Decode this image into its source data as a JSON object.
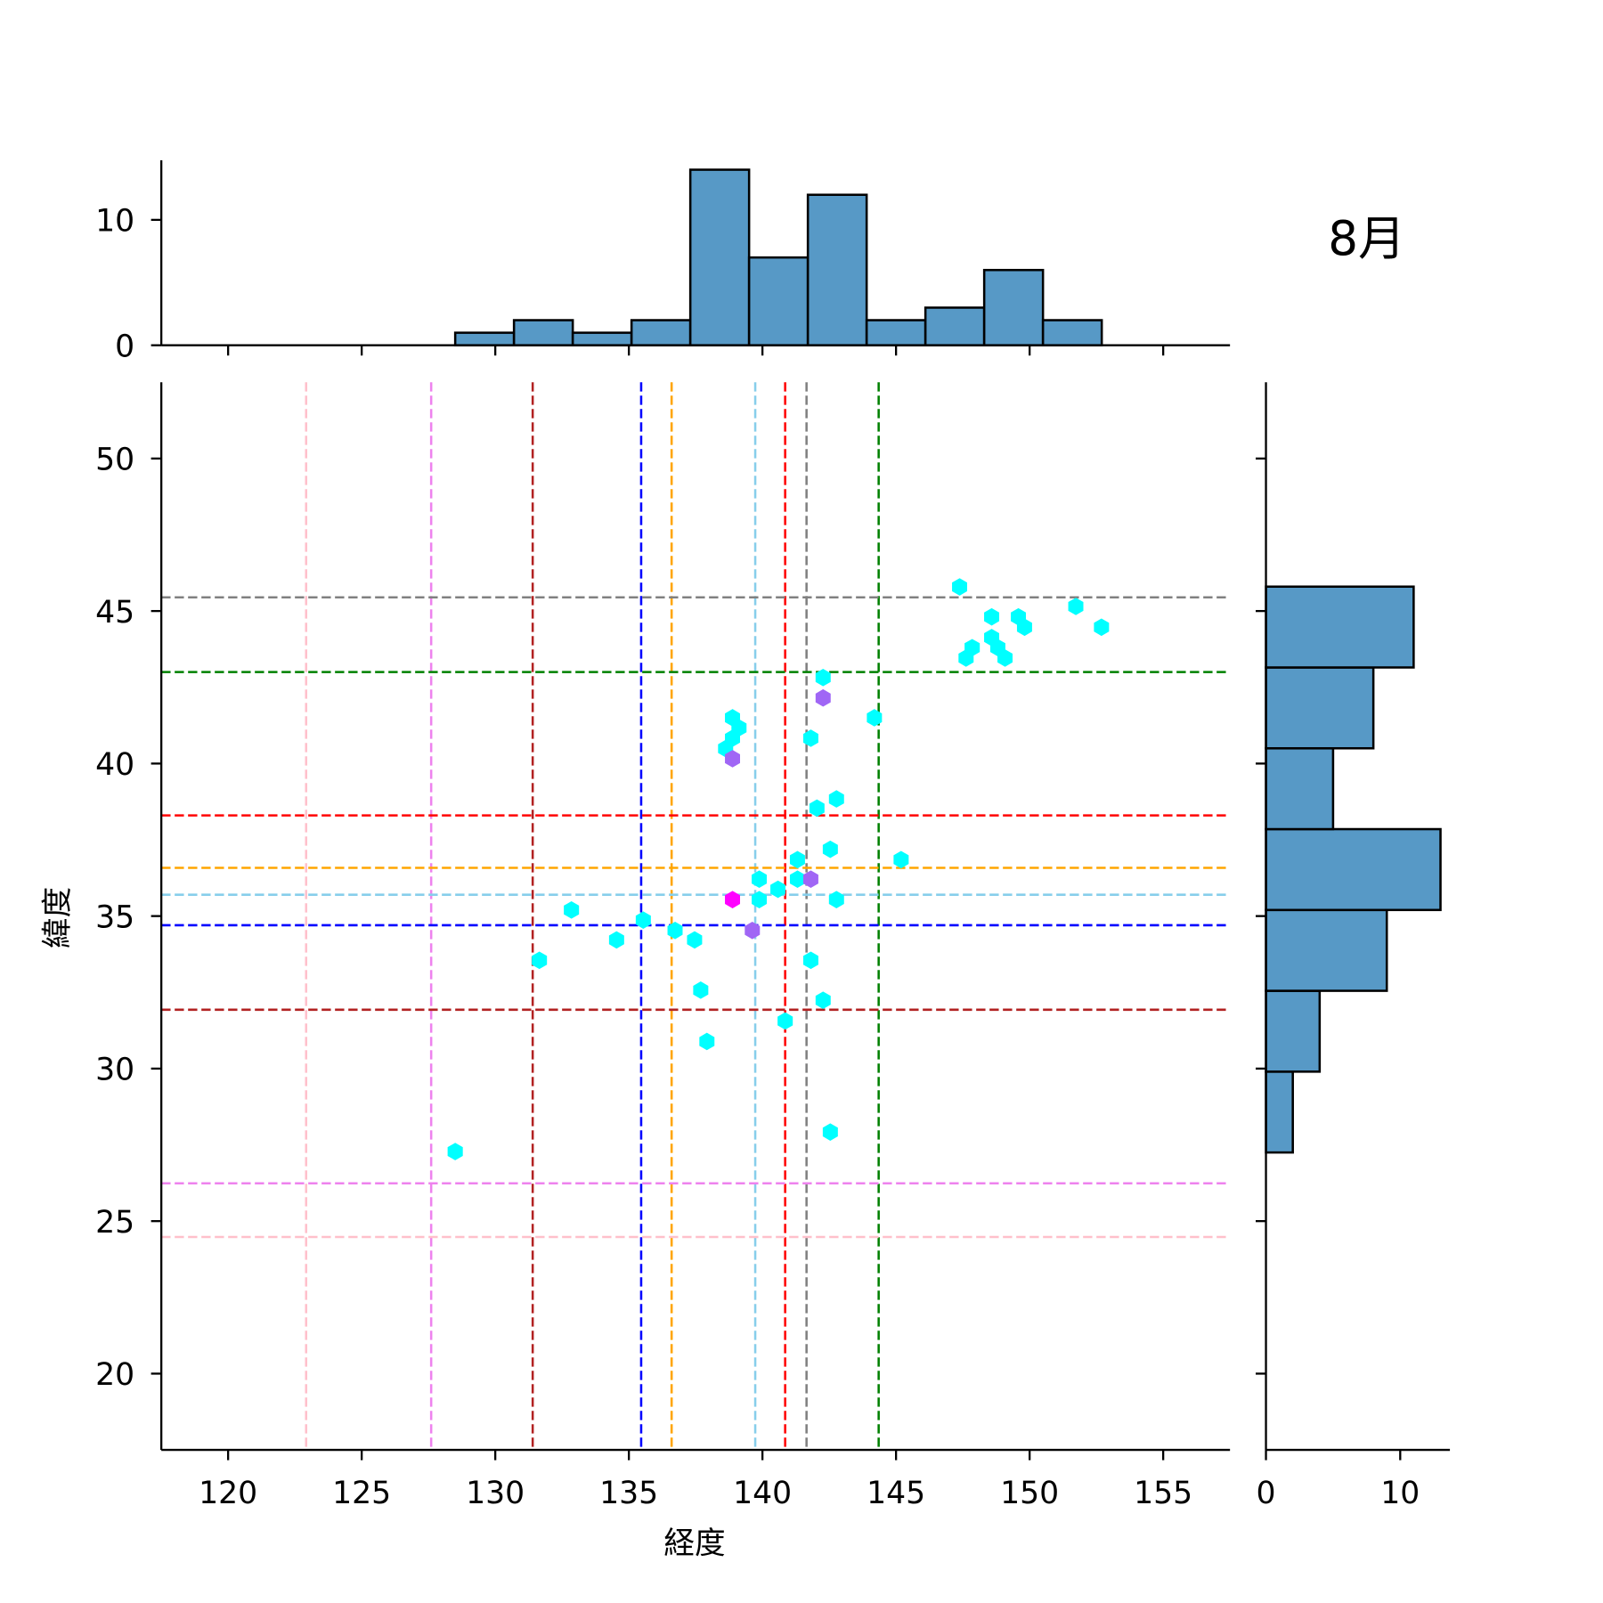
{
  "chart_data": {
    "type": "scatter",
    "title": "8月",
    "xlabel": "経度",
    "ylabel": "緯度",
    "xlim": [
      117.5,
      157.5
    ],
    "ylim": [
      17.5,
      52.5
    ],
    "xticks": [
      120,
      125,
      130,
      135,
      140,
      145,
      150,
      155
    ],
    "yticks": [
      20,
      25,
      30,
      35,
      40,
      45,
      50
    ],
    "grid": false,
    "colors": {
      "hist": "#5799c6",
      "cyan": "#00ffff",
      "purple": "#a066f5",
      "magenta": "#ff00ff"
    },
    "points": [
      {
        "lon": 147.38,
        "lat": 45.79,
        "c": "cyan"
      },
      {
        "lon": 148.58,
        "lat": 44.81,
        "c": "cyan"
      },
      {
        "lon": 149.58,
        "lat": 44.81,
        "c": "cyan"
      },
      {
        "lon": 149.81,
        "lat": 44.47,
        "c": "cyan"
      },
      {
        "lon": 151.73,
        "lat": 45.15,
        "c": "cyan"
      },
      {
        "lon": 152.69,
        "lat": 44.47,
        "c": "cyan"
      },
      {
        "lon": 148.58,
        "lat": 44.13,
        "c": "cyan"
      },
      {
        "lon": 147.85,
        "lat": 43.8,
        "c": "cyan"
      },
      {
        "lon": 147.62,
        "lat": 43.46,
        "c": "cyan"
      },
      {
        "lon": 148.81,
        "lat": 43.8,
        "c": "cyan"
      },
      {
        "lon": 149.08,
        "lat": 43.46,
        "c": "cyan"
      },
      {
        "lon": 142.27,
        "lat": 42.82,
        "c": "cyan"
      },
      {
        "lon": 144.19,
        "lat": 41.5,
        "c": "cyan"
      },
      {
        "lon": 138.88,
        "lat": 41.5,
        "c": "cyan"
      },
      {
        "lon": 139.12,
        "lat": 41.17,
        "c": "cyan"
      },
      {
        "lon": 138.88,
        "lat": 40.83,
        "c": "cyan"
      },
      {
        "lon": 138.62,
        "lat": 40.49,
        "c": "cyan"
      },
      {
        "lon": 141.81,
        "lat": 40.83,
        "c": "cyan"
      },
      {
        "lon": 142.04,
        "lat": 38.54,
        "c": "cyan"
      },
      {
        "lon": 142.77,
        "lat": 38.84,
        "c": "cyan"
      },
      {
        "lon": 142.54,
        "lat": 37.19,
        "c": "cyan"
      },
      {
        "lon": 141.31,
        "lat": 36.85,
        "c": "cyan"
      },
      {
        "lon": 145.19,
        "lat": 36.85,
        "c": "cyan"
      },
      {
        "lon": 139.88,
        "lat": 36.21,
        "c": "cyan"
      },
      {
        "lon": 141.31,
        "lat": 36.21,
        "c": "cyan"
      },
      {
        "lon": 140.58,
        "lat": 35.88,
        "c": "cyan"
      },
      {
        "lon": 139.88,
        "lat": 35.54,
        "c": "cyan"
      },
      {
        "lon": 142.77,
        "lat": 35.54,
        "c": "cyan"
      },
      {
        "lon": 132.85,
        "lat": 35.2,
        "c": "cyan"
      },
      {
        "lon": 135.54,
        "lat": 34.87,
        "c": "cyan"
      },
      {
        "lon": 136.73,
        "lat": 34.53,
        "c": "cyan"
      },
      {
        "lon": 134.54,
        "lat": 34.22,
        "c": "cyan"
      },
      {
        "lon": 137.46,
        "lat": 34.22,
        "c": "cyan"
      },
      {
        "lon": 131.65,
        "lat": 33.55,
        "c": "cyan"
      },
      {
        "lon": 141.81,
        "lat": 33.55,
        "c": "cyan"
      },
      {
        "lon": 137.69,
        "lat": 32.57,
        "c": "cyan"
      },
      {
        "lon": 142.27,
        "lat": 32.24,
        "c": "cyan"
      },
      {
        "lon": 140.85,
        "lat": 31.56,
        "c": "cyan"
      },
      {
        "lon": 137.92,
        "lat": 30.89,
        "c": "cyan"
      },
      {
        "lon": 142.54,
        "lat": 27.92,
        "c": "cyan"
      },
      {
        "lon": 128.5,
        "lat": 27.28,
        "c": "cyan"
      },
      {
        "lon": 142.27,
        "lat": 42.15,
        "c": "purple"
      },
      {
        "lon": 138.88,
        "lat": 40.16,
        "c": "purple"
      },
      {
        "lon": 141.81,
        "lat": 36.21,
        "c": "purple"
      },
      {
        "lon": 139.62,
        "lat": 34.53,
        "c": "purple"
      },
      {
        "lon": 138.88,
        "lat": 35.54,
        "c": "magenta"
      }
    ],
    "vlines": [
      {
        "lon": 122.92,
        "color": "#ffc0cb"
      },
      {
        "lon": 127.6,
        "color": "#ee82ee"
      },
      {
        "lon": 131.4,
        "color": "#b22222"
      },
      {
        "lon": 135.46,
        "color": "#0000ff"
      },
      {
        "lon": 136.6,
        "color": "#ffa500"
      },
      {
        "lon": 139.73,
        "color": "#87ceeb"
      },
      {
        "lon": 140.85,
        "color": "#ff0000"
      },
      {
        "lon": 141.65,
        "color": "#808080"
      },
      {
        "lon": 144.35,
        "color": "#008000"
      }
    ],
    "hlines": [
      {
        "lat": 45.45,
        "color": "#808080"
      },
      {
        "lat": 43.0,
        "color": "#008000"
      },
      {
        "lat": 38.3,
        "color": "#ff0000"
      },
      {
        "lat": 36.58,
        "color": "#ffa500"
      },
      {
        "lat": 35.7,
        "color": "#87ceeb"
      },
      {
        "lat": 34.7,
        "color": "#0000ff"
      },
      {
        "lat": 31.93,
        "color": "#b22222"
      },
      {
        "lat": 26.24,
        "color": "#ee82ee"
      },
      {
        "lat": 24.48,
        "color": "#ffc0cb"
      }
    ],
    "top_hist": {
      "bin_start": 128.5,
      "bin_width": 2.2,
      "counts": [
        1,
        2,
        1,
        2,
        14,
        7,
        12,
        2,
        3,
        6,
        2
      ],
      "ylim": [
        0,
        14.75
      ],
      "yticks": [
        0,
        10
      ]
    },
    "right_hist": {
      "bin_start": 27.25,
      "bin_width": 2.65,
      "counts": [
        2,
        4,
        9,
        13,
        5,
        8,
        11
      ],
      "xlim": [
        0,
        13.7
      ],
      "xticks": [
        0,
        10
      ]
    }
  }
}
